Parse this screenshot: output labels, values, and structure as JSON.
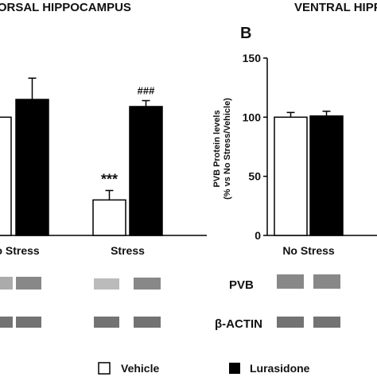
{
  "header": {
    "left_title": "DORSAL HIPPOCAMPUS",
    "right_title": "VENTRAL HIPPOCAMPUS",
    "panel_b_letter": "B"
  },
  "blot_labels": {
    "pvb": "PVB",
    "actin": "β-ACTIN"
  },
  "legend": {
    "items": [
      {
        "label": "Vehicle",
        "color": "#ffffff"
      },
      {
        "label": "Lurasidone",
        "color": "#000000"
      }
    ]
  },
  "colors": {
    "vehicle": "#ffffff",
    "lurasidone": "#000000",
    "axis": "#000000"
  },
  "chart_data": [
    {
      "panel": "A",
      "type": "bar",
      "title": "DORSAL HIPPOCAMPUS",
      "categories": [
        "No Stress",
        "Stress"
      ],
      "ylim": [
        0,
        150
      ],
      "series": [
        {
          "name": "Vehicle",
          "values": [
            100,
            30
          ],
          "errors": [
            0,
            8
          ]
        },
        {
          "name": "Lurasidone",
          "values": [
            115,
            109
          ],
          "errors": [
            18,
            5
          ]
        }
      ],
      "annotations": [
        {
          "category": "Stress",
          "series": "Vehicle",
          "text": "***"
        },
        {
          "category": "Stress",
          "series": "Lurasidone",
          "text": "###"
        }
      ],
      "legend_placement": "bottom",
      "grid": false
    },
    {
      "panel": "B",
      "type": "bar",
      "title": "VENTRAL HIPPOCAMPUS",
      "categories": [
        "No Stress"
      ],
      "ylabel_line1": "PVB Protein levels",
      "ylabel_line2": "(% vs No Stress/Vehicle)",
      "ylim": [
        0,
        150
      ],
      "yticks": [
        "0",
        "50",
        "100",
        "150"
      ],
      "series": [
        {
          "name": "Vehicle",
          "values": [
            100
          ],
          "errors": [
            4
          ]
        },
        {
          "name": "Lurasidone",
          "values": [
            101
          ],
          "errors": [
            4
          ]
        }
      ],
      "legend_placement": "bottom",
      "grid": false
    }
  ]
}
